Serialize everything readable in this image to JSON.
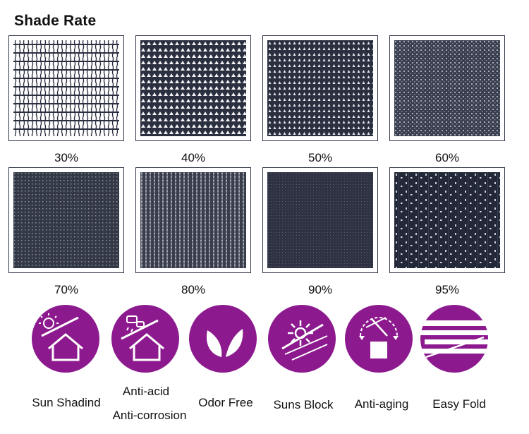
{
  "heading": "Shade Rate",
  "shade_rates": [
    "30%",
    "40%",
    "50%",
    "60%",
    "70%",
    "80%",
    "90%",
    "95%"
  ],
  "features": [
    {
      "icon": "sun-house-icon",
      "label": "Sun Shadind"
    },
    {
      "icon": "acid-house-icon",
      "label_line1": "Anti-acid",
      "label_line2": "Anti-corrosion"
    },
    {
      "icon": "leaves-icon",
      "label": "Odor Free"
    },
    {
      "icon": "sunburst-icon",
      "label": "Suns Block"
    },
    {
      "icon": "aging-box-icon",
      "label": "Anti-aging"
    },
    {
      "icon": "folded-fabric-icon",
      "label": "Easy Fold"
    }
  ],
  "colors": {
    "feature_circle": "#8c1a8e",
    "fabric": "#2b3040",
    "swatch_border": "#2d3447"
  }
}
